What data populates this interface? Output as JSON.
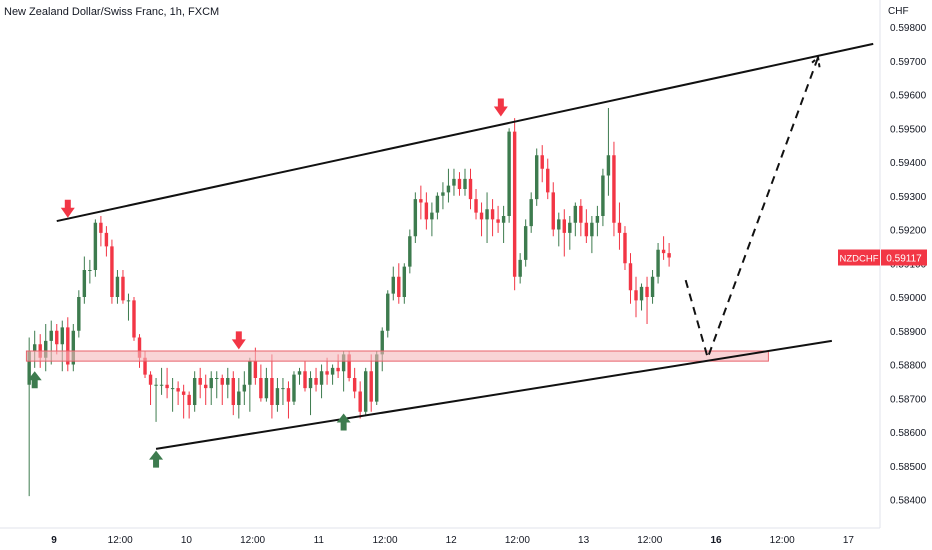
{
  "header": {
    "title": "New Zealand Dollar/Swiss Franc, 1h, FXCM",
    "currency": "CHF"
  },
  "price_badge": {
    "symbol": "NZDCHF",
    "price": "0.59117",
    "color": "#f23645"
  },
  "colors": {
    "up": "#3d7b4e",
    "down": "#f23645",
    "zone_fill": "#f5b7bb",
    "zone_edge": "#e8626b",
    "marker_up": "#3d7b4e",
    "marker_down": "#f23645",
    "line": "#111111"
  },
  "chart_data": {
    "type": "candlestick",
    "symbol": "NZDCHF",
    "timeframe": "1h",
    "y_ticks": [
      "0.59800",
      "0.59700",
      "0.59600",
      "0.59500",
      "0.59400",
      "0.59300",
      "0.59200",
      "0.59100",
      "0.59000",
      "0.58900",
      "0.58800",
      "0.58700",
      "0.58600",
      "0.58500",
      "0.58400"
    ],
    "x_ticks": [
      {
        "label": "9",
        "bold": true,
        "hour": 0
      },
      {
        "label": "12:00",
        "bold": false,
        "hour": 12
      },
      {
        "label": "10",
        "bold": false,
        "hour": 24
      },
      {
        "label": "12:00",
        "bold": false,
        "hour": 36
      },
      {
        "label": "11",
        "bold": false,
        "hour": 48
      },
      {
        "label": "12:00",
        "bold": false,
        "hour": 60
      },
      {
        "label": "12",
        "bold": false,
        "hour": 72
      },
      {
        "label": "12:00",
        "bold": false,
        "hour": 84
      },
      {
        "label": "13",
        "bold": false,
        "hour": 96
      },
      {
        "label": "12:00",
        "bold": false,
        "hour": 108
      },
      {
        "label": "16",
        "bold": true,
        "hour": 120
      },
      {
        "label": "12:00",
        "bold": false,
        "hour": 132
      },
      {
        "label": "17",
        "bold": false,
        "hour": 144
      }
    ],
    "ylim": [
      0.5837,
      0.5983
    ],
    "candles": [
      [
        -4.5,
        0.5874,
        0.5888,
        0.5841,
        0.5884
      ],
      [
        -3.5,
        0.5884,
        0.589,
        0.5879,
        0.5886
      ],
      [
        -2.5,
        0.5886,
        0.5889,
        0.5879,
        0.5882
      ],
      [
        -1.5,
        0.5882,
        0.5892,
        0.5878,
        0.5887
      ],
      [
        -0.5,
        0.5887,
        0.5893,
        0.588,
        0.589
      ],
      [
        0.5,
        0.589,
        0.5892,
        0.5883,
        0.5886
      ],
      [
        1.5,
        0.5886,
        0.5893,
        0.5878,
        0.5891
      ],
      [
        2.5,
        0.5891,
        0.5894,
        0.5878,
        0.588
      ],
      [
        3.5,
        0.588,
        0.5892,
        0.5878,
        0.589
      ],
      [
        4.5,
        0.589,
        0.5902,
        0.5888,
        0.59
      ],
      [
        5.5,
        0.59,
        0.5912,
        0.5898,
        0.5908
      ],
      [
        6.5,
        0.5908,
        0.5911,
        0.5904,
        0.5908
      ],
      [
        7.5,
        0.5908,
        0.5923,
        0.5906,
        0.5922
      ],
      [
        8.5,
        0.5922,
        0.5924,
        0.5915,
        0.5919
      ],
      [
        9.5,
        0.5919,
        0.5921,
        0.5912,
        0.5915
      ],
      [
        10.5,
        0.5915,
        0.5917,
        0.5898,
        0.59
      ],
      [
        11.5,
        0.59,
        0.5908,
        0.5898,
        0.5906
      ],
      [
        12.5,
        0.5906,
        0.5908,
        0.5898,
        0.5899
      ],
      [
        13.5,
        0.5899,
        0.5901,
        0.5893,
        0.5899
      ],
      [
        14.5,
        0.5899,
        0.59,
        0.5887,
        0.5888
      ],
      [
        15.5,
        0.5888,
        0.5889,
        0.5879,
        0.5882
      ],
      [
        16.5,
        0.5882,
        0.5884,
        0.5876,
        0.5877
      ],
      [
        17.5,
        0.5877,
        0.5878,
        0.5868,
        0.5874
      ],
      [
        18.5,
        0.5874,
        0.5876,
        0.5863,
        0.5874
      ],
      [
        19.5,
        0.5874,
        0.5879,
        0.5871,
        0.5874
      ],
      [
        20.5,
        0.5874,
        0.5879,
        0.587,
        0.5873
      ],
      [
        21.5,
        0.5873,
        0.5876,
        0.5866,
        0.5873
      ],
      [
        22.5,
        0.5873,
        0.5875,
        0.5868,
        0.5872
      ],
      [
        23.5,
        0.5872,
        0.5874,
        0.5864,
        0.5871
      ],
      [
        24.5,
        0.5871,
        0.5872,
        0.5864,
        0.5868
      ],
      [
        25.5,
        0.5868,
        0.5878,
        0.5866,
        0.5876
      ],
      [
        26.5,
        0.5876,
        0.5879,
        0.587,
        0.5874
      ],
      [
        27.5,
        0.5874,
        0.5877,
        0.5868,
        0.5873
      ],
      [
        28.5,
        0.5873,
        0.5878,
        0.5868,
        0.5876
      ],
      [
        29.5,
        0.5876,
        0.5878,
        0.587,
        0.5876
      ],
      [
        30.5,
        0.5876,
        0.5877,
        0.5868,
        0.5874
      ],
      [
        31.5,
        0.5874,
        0.5879,
        0.587,
        0.5876
      ],
      [
        32.5,
        0.5876,
        0.5878,
        0.5865,
        0.5868
      ],
      [
        33.5,
        0.5868,
        0.5876,
        0.5864,
        0.5872
      ],
      [
        34.5,
        0.5872,
        0.5878,
        0.5868,
        0.5874
      ],
      [
        35.5,
        0.5874,
        0.5882,
        0.5866,
        0.5881
      ],
      [
        36.5,
        0.5881,
        0.5885,
        0.5874,
        0.5876
      ],
      [
        37.5,
        0.5876,
        0.588,
        0.5869,
        0.587
      ],
      [
        38.5,
        0.587,
        0.5879,
        0.5869,
        0.5876
      ],
      [
        39.5,
        0.5876,
        0.5883,
        0.5864,
        0.5868
      ],
      [
        40.5,
        0.5868,
        0.5876,
        0.5866,
        0.5873
      ],
      [
        41.5,
        0.5873,
        0.5876,
        0.5868,
        0.5873
      ],
      [
        42.5,
        0.5873,
        0.5875,
        0.5864,
        0.5869
      ],
      [
        43.5,
        0.5869,
        0.5878,
        0.5868,
        0.5877
      ],
      [
        44.5,
        0.5877,
        0.5879,
        0.5874,
        0.5878
      ],
      [
        45.5,
        0.5878,
        0.5881,
        0.5872,
        0.5873
      ],
      [
        46.5,
        0.5873,
        0.5878,
        0.5865,
        0.5876
      ],
      [
        47.5,
        0.5876,
        0.5879,
        0.5872,
        0.5874
      ],
      [
        48.5,
        0.5874,
        0.588,
        0.587,
        0.5878
      ],
      [
        49.5,
        0.5878,
        0.5882,
        0.5874,
        0.5877
      ],
      [
        50.5,
        0.5877,
        0.588,
        0.5874,
        0.5879
      ],
      [
        51.5,
        0.5879,
        0.5883,
        0.5876,
        0.5878
      ],
      [
        52.5,
        0.5878,
        0.5884,
        0.5872,
        0.5883
      ],
      [
        53.5,
        0.5883,
        0.5884,
        0.5875,
        0.5876
      ],
      [
        54.5,
        0.5876,
        0.5879,
        0.587,
        0.5872
      ],
      [
        55.5,
        0.5872,
        0.5875,
        0.5864,
        0.5866
      ],
      [
        56.5,
        0.5866,
        0.5879,
        0.5865,
        0.5878
      ],
      [
        57.5,
        0.5878,
        0.5883,
        0.5866,
        0.5869
      ],
      [
        58.5,
        0.5869,
        0.5884,
        0.5868,
        0.5883
      ],
      [
        59.5,
        0.5883,
        0.5891,
        0.5878,
        0.589
      ],
      [
        60.5,
        0.589,
        0.5902,
        0.5888,
        0.5901
      ],
      [
        61.5,
        0.5901,
        0.5909,
        0.5899,
        0.5906
      ],
      [
        62.5,
        0.5906,
        0.591,
        0.5898,
        0.59
      ],
      [
        63.5,
        0.59,
        0.591,
        0.5898,
        0.5909
      ],
      [
        64.5,
        0.5909,
        0.592,
        0.5907,
        0.5918
      ],
      [
        65.5,
        0.5918,
        0.5931,
        0.5916,
        0.5929
      ],
      [
        66.5,
        0.5929,
        0.5933,
        0.5923,
        0.5928
      ],
      [
        67.5,
        0.5928,
        0.5931,
        0.592,
        0.5923
      ],
      [
        68.5,
        0.5923,
        0.5928,
        0.5918,
        0.5925
      ],
      [
        69.5,
        0.5925,
        0.5931,
        0.5923,
        0.593
      ],
      [
        70.5,
        0.593,
        0.5934,
        0.5926,
        0.5931
      ],
      [
        71.5,
        0.5931,
        0.5938,
        0.5928,
        0.5933
      ],
      [
        72.5,
        0.5933,
        0.5938,
        0.593,
        0.5935
      ],
      [
        73.5,
        0.5935,
        0.5937,
        0.593,
        0.5932
      ],
      [
        74.5,
        0.5932,
        0.5938,
        0.593,
        0.5935
      ],
      [
        75.5,
        0.5935,
        0.5938,
        0.5926,
        0.5929
      ],
      [
        76.5,
        0.5929,
        0.5932,
        0.5923,
        0.5925
      ],
      [
        77.5,
        0.5925,
        0.5928,
        0.5918,
        0.5923
      ],
      [
        78.5,
        0.5923,
        0.5931,
        0.5916,
        0.5926
      ],
      [
        79.5,
        0.5926,
        0.5929,
        0.5918,
        0.5923
      ],
      [
        80.5,
        0.5923,
        0.5927,
        0.5919,
        0.5922
      ],
      [
        81.5,
        0.5922,
        0.5927,
        0.5916,
        0.5924
      ],
      [
        82.5,
        0.5924,
        0.595,
        0.5922,
        0.5949
      ],
      [
        83.5,
        0.5949,
        0.5953,
        0.5902,
        0.5906
      ],
      [
        84.5,
        0.5906,
        0.5913,
        0.5904,
        0.5911
      ],
      [
        85.5,
        0.5911,
        0.5923,
        0.5909,
        0.5921
      ],
      [
        86.5,
        0.5921,
        0.5931,
        0.5919,
        0.5929
      ],
      [
        87.5,
        0.5929,
        0.5944,
        0.5927,
        0.5942
      ],
      [
        88.5,
        0.5942,
        0.5945,
        0.5934,
        0.5938
      ],
      [
        89.5,
        0.5938,
        0.5941,
        0.5929,
        0.5931
      ],
      [
        90.5,
        0.5931,
        0.5934,
        0.5918,
        0.592
      ],
      [
        91.5,
        0.592,
        0.5925,
        0.5915,
        0.5923
      ],
      [
        92.5,
        0.5923,
        0.5926,
        0.5912,
        0.5919
      ],
      [
        93.5,
        0.5919,
        0.5924,
        0.5914,
        0.5922
      ],
      [
        94.5,
        0.5922,
        0.5928,
        0.5918,
        0.5927
      ],
      [
        95.5,
        0.5927,
        0.5929,
        0.5918,
        0.5922
      ],
      [
        96.5,
        0.5922,
        0.5926,
        0.5916,
        0.5918
      ],
      [
        97.5,
        0.5918,
        0.5924,
        0.5913,
        0.5922
      ],
      [
        98.5,
        0.5922,
        0.5927,
        0.5918,
        0.5924
      ],
      [
        99.5,
        0.5924,
        0.5938,
        0.5921,
        0.5936
      ],
      [
        100.5,
        0.5936,
        0.5956,
        0.593,
        0.5942
      ],
      [
        101.5,
        0.5942,
        0.5946,
        0.5918,
        0.5922
      ],
      [
        102.5,
        0.5922,
        0.5928,
        0.5914,
        0.5919
      ],
      [
        103.5,
        0.5919,
        0.5921,
        0.5908,
        0.591
      ],
      [
        104.5,
        0.591,
        0.5913,
        0.5898,
        0.5902
      ],
      [
        105.5,
        0.5902,
        0.5906,
        0.5894,
        0.5899
      ],
      [
        106.5,
        0.5899,
        0.5904,
        0.5896,
        0.5903
      ],
      [
        107.5,
        0.5903,
        0.5906,
        0.5892,
        0.59
      ],
      [
        108.5,
        0.59,
        0.5908,
        0.5898,
        0.5906
      ],
      [
        109.5,
        0.5906,
        0.5916,
        0.5904,
        0.5914
      ],
      [
        110.5,
        0.5914,
        0.5918,
        0.5911,
        0.5913
      ],
      [
        111.5,
        0.5913,
        0.5916,
        0.5909,
        0.59117
      ]
    ],
    "annotations": {
      "upper_channel": {
        "x1": 0.5,
        "y1": 0.59225,
        "x2": 148.5,
        "y2": 0.5975
      },
      "lower_channel": {
        "x1": 18.5,
        "y1": 0.5855,
        "x2": 141,
        "y2": 0.5887
      },
      "support_zone": {
        "x1": -5,
        "x2": 129.5,
        "y_top": 0.5884,
        "y_bottom": 0.5881
      },
      "projection": [
        [
          114.5,
          0.5905
        ],
        [
          118.5,
          0.5882
        ],
        [
          138.5,
          0.5971
        ]
      ],
      "down_arrows": [
        [
          2.5,
          0.59235
        ],
        [
          81,
          0.59535
        ],
        [
          33.5,
          0.58845
        ]
      ],
      "up_arrows": [
        [
          -3.5,
          0.5878
        ],
        [
          18.5,
          0.58545
        ],
        [
          52.5,
          0.58655
        ]
      ]
    }
  }
}
